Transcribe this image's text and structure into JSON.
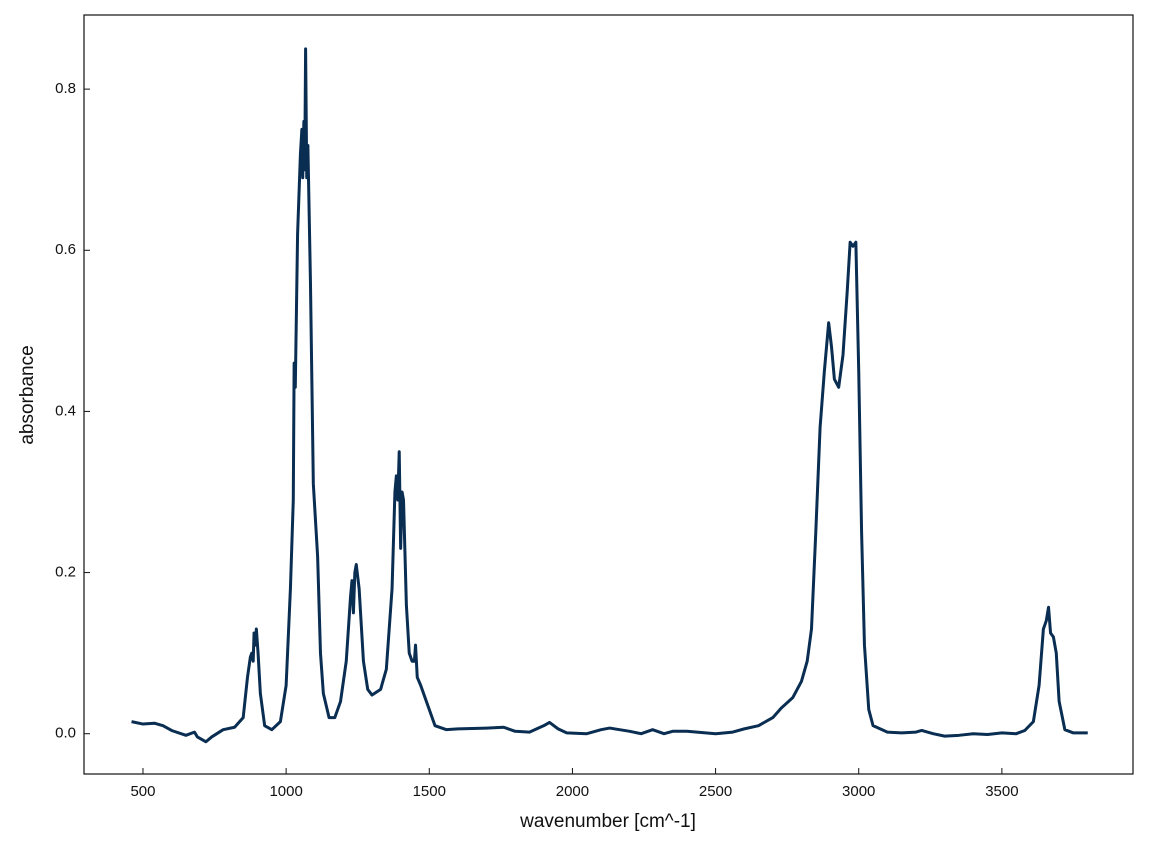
{
  "chart_data": {
    "type": "line",
    "xlabel": "wavenumber [cm^-1]",
    "ylabel": "absorbance",
    "color": "#0a2d52",
    "xlim": [
      294,
      3958
    ],
    "ylim": [
      -0.05,
      0.892
    ],
    "xticks": [
      500,
      1000,
      1500,
      2000,
      2500,
      3000,
      3500
    ],
    "yticks": [
      {
        "value": 0,
        "label": "0.0"
      },
      0.2,
      0.4,
      0.6,
      0.8
    ],
    "x": [
      460,
      500,
      540,
      570,
      600,
      650,
      680,
      690,
      720,
      740,
      780,
      820,
      850,
      865,
      875,
      880,
      885,
      888,
      893,
      896,
      902,
      910,
      925,
      950,
      980,
      1000,
      1015,
      1025,
      1028,
      1032,
      1040,
      1050,
      1055,
      1058,
      1062,
      1065,
      1068,
      1072,
      1076,
      1085,
      1095,
      1110,
      1120,
      1130,
      1150,
      1170,
      1190,
      1210,
      1225,
      1230,
      1235,
      1240,
      1245,
      1255,
      1270,
      1285,
      1300,
      1330,
      1350,
      1370,
      1380,
      1385,
      1390,
      1395,
      1400,
      1405,
      1410,
      1420,
      1430,
      1440,
      1448,
      1452,
      1458,
      1470,
      1490,
      1520,
      1560,
      1600,
      1700,
      1760,
      1800,
      1850,
      1900,
      1920,
      1950,
      1980,
      2050,
      2100,
      2130,
      2200,
      2240,
      2280,
      2320,
      2350,
      2400,
      2500,
      2560,
      2600,
      2650,
      2700,
      2730,
      2770,
      2800,
      2820,
      2835,
      2850,
      2865,
      2880,
      2895,
      2905,
      2915,
      2930,
      2945,
      2960,
      2970,
      2980,
      2990,
      3000,
      3010,
      3020,
      3035,
      3050,
      3100,
      3150,
      3200,
      3220,
      3260,
      3300,
      3350,
      3400,
      3450,
      3500,
      3550,
      3580,
      3610,
      3630,
      3645,
      3655,
      3663,
      3670,
      3680,
      3690,
      3700,
      3720,
      3750,
      3800
    ],
    "values": [
      0.015,
      0.012,
      0.013,
      0.01,
      0.004,
      -0.002,
      0.002,
      -0.004,
      -0.01,
      -0.004,
      0.005,
      0.008,
      0.02,
      0.07,
      0.095,
      0.1,
      0.09,
      0.125,
      0.11,
      0.13,
      0.1,
      0.05,
      0.01,
      0.005,
      0.015,
      0.06,
      0.18,
      0.29,
      0.46,
      0.43,
      0.62,
      0.72,
      0.75,
      0.69,
      0.76,
      0.7,
      0.85,
      0.69,
      0.73,
      0.56,
      0.31,
      0.22,
      0.1,
      0.05,
      0.02,
      0.02,
      0.04,
      0.09,
      0.17,
      0.19,
      0.15,
      0.2,
      0.21,
      0.18,
      0.09,
      0.055,
      0.048,
      0.055,
      0.08,
      0.18,
      0.3,
      0.32,
      0.29,
      0.35,
      0.23,
      0.3,
      0.29,
      0.16,
      0.1,
      0.09,
      0.09,
      0.11,
      0.07,
      0.06,
      0.04,
      0.01,
      0.005,
      0.006,
      0.007,
      0.008,
      0.003,
      0.002,
      0.01,
      0.014,
      0.006,
      0.001,
      0.0,
      0.005,
      0.007,
      0.003,
      0.0,
      0.005,
      0.0,
      0.003,
      0.003,
      0.0,
      0.002,
      0.006,
      0.01,
      0.02,
      0.032,
      0.045,
      0.065,
      0.09,
      0.13,
      0.25,
      0.38,
      0.45,
      0.51,
      0.48,
      0.44,
      0.43,
      0.47,
      0.55,
      0.61,
      0.605,
      0.61,
      0.45,
      0.25,
      0.11,
      0.03,
      0.01,
      0.002,
      0.001,
      0.002,
      0.004,
      0.0,
      -0.003,
      -0.002,
      0.0,
      -0.001,
      0.001,
      0.0,
      0.004,
      0.015,
      0.06,
      0.13,
      0.14,
      0.157,
      0.125,
      0.12,
      0.1,
      0.04,
      0.005,
      0.001,
      0.001
    ]
  }
}
